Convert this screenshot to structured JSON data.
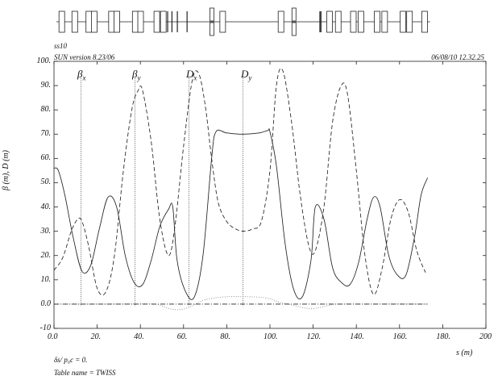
{
  "header": {
    "sequence_name": "ss10",
    "program_version": "SUN version 8.23/06",
    "timestamp": "06/08/10  12.32.25"
  },
  "footer": {
    "delta_label": "δs/ p₀c  =  0.",
    "table_name": "Table name = TWISS"
  },
  "markers": [
    {
      "base": "β",
      "sub": "x",
      "name": "beta-x-label"
    },
    {
      "base": "β",
      "sub": "y",
      "name": "beta-y-label"
    },
    {
      "base": "D",
      "sub": "x",
      "name": "dx-label"
    },
    {
      "base": "D",
      "sub": "y",
      "name": "dy-label"
    }
  ],
  "lattice": {
    "elements": [
      {
        "s": 2.5,
        "type": "quad-focus"
      },
      {
        "s": 8.5,
        "type": "quad-focus"
      },
      {
        "s": 15.0,
        "type": "quad-focus"
      },
      {
        "s": 17.5,
        "type": "quad-focus"
      },
      {
        "s": 25.5,
        "type": "quad-focus"
      },
      {
        "s": 28.0,
        "type": "quad-focus"
      },
      {
        "s": 36.5,
        "type": "quad-focus"
      },
      {
        "s": 39.0,
        "type": "quad-focus"
      },
      {
        "s": 46.5,
        "type": "quad-focus"
      },
      {
        "s": 49.5,
        "type": "quad-focus"
      },
      {
        "s": 51.5,
        "type": "marker"
      },
      {
        "s": 53.5,
        "type": "marker"
      },
      {
        "s": 56.0,
        "type": "marker"
      },
      {
        "s": 60.5,
        "type": "marker"
      },
      {
        "s": 77.0,
        "type": "quad-focus"
      },
      {
        "s": 72.0,
        "type": "quad-defocus"
      },
      {
        "s": 104.0,
        "type": "quad-focus"
      },
      {
        "s": 110.0,
        "type": "quad-defocus"
      },
      {
        "s": 122.0,
        "type": "marker"
      },
      {
        "s": 122.5,
        "type": "marker"
      },
      {
        "s": 126.5,
        "type": "quad-focus"
      },
      {
        "s": 130.5,
        "type": "quad-focus"
      },
      {
        "s": 137.5,
        "type": "quad-focus"
      },
      {
        "s": 141.0,
        "type": "quad-focus"
      },
      {
        "s": 148.5,
        "type": "quad-focus"
      },
      {
        "s": 152.0,
        "type": "quad-focus"
      },
      {
        "s": 160.5,
        "type": "quad-focus"
      },
      {
        "s": 163.5,
        "type": "quad-focus"
      },
      {
        "s": 170.5,
        "type": "quad-focus"
      }
    ]
  },
  "chart_data": {
    "type": "line",
    "xlabel": "s (m)",
    "ylabel": "β  (m),  D  (m)",
    "xlim": [
      0,
      200
    ],
    "ylim": [
      -10,
      100
    ],
    "xticks": [
      0,
      20,
      40,
      60,
      80,
      100,
      120,
      140,
      160,
      180,
      200
    ],
    "xtick_labels": [
      "0.0",
      "20.",
      "40.",
      "60.",
      "80.",
      "100.",
      "120.",
      "140.",
      "160.",
      "180.",
      "200"
    ],
    "yticks": [
      -10,
      0,
      10,
      20,
      30,
      40,
      50,
      60,
      70,
      80,
      90,
      100
    ],
    "ytick_labels": [
      "-10",
      "0.0",
      "10.",
      "20.",
      "30.",
      "40.",
      "50.",
      "60.",
      "70.",
      "80.",
      "90.",
      "100."
    ],
    "marker_positions_s": [
      12.5,
      37.5,
      62.5,
      87.5
    ],
    "series": [
      {
        "key": "beta_x",
        "style": "solid",
        "x": [
          0,
          2,
          5,
          9,
          13,
          17,
          21,
          25,
          29,
          33,
          37,
          41,
          45,
          49,
          53,
          55,
          57,
          61,
          65,
          69,
          73,
          75,
          80,
          87,
          95,
          99,
          100,
          103,
          107,
          111,
          115,
          119,
          121,
          125,
          129,
          133,
          137,
          141,
          145,
          148,
          151,
          155,
          159,
          163,
          167,
          170,
          173
        ],
        "y": [
          56,
          55,
          45,
          27,
          13.5,
          16,
          31,
          44,
          40,
          20,
          9,
          8,
          18,
          32,
          39,
          40,
          18,
          5,
          3,
          20,
          60,
          71,
          70.5,
          70,
          70.5,
          71.5,
          71,
          57,
          25,
          6,
          3,
          18,
          40,
          35,
          15,
          9,
          8,
          17,
          35,
          44,
          40,
          20,
          12,
          12,
          28,
          45,
          52
        ]
      },
      {
        "key": "beta_y",
        "style": "dashed",
        "x": [
          0,
          4,
          8,
          11,
          13,
          16,
          20,
          24,
          28,
          32,
          36,
          39,
          41,
          45,
          49,
          53,
          56,
          60,
          64,
          67,
          70,
          73,
          76,
          80,
          84,
          88,
          92,
          96,
          100,
          103,
          106,
          110,
          114,
          118,
          121,
          125,
          129,
          133,
          136,
          140,
          144,
          148,
          152,
          156,
          160,
          164,
          168,
          172
        ],
        "y": [
          14,
          19,
          30,
          35,
          34,
          24,
          6.5,
          5,
          20,
          54,
          80,
          88,
          88,
          67,
          35,
          20,
          32,
          65,
          92,
          95,
          82,
          60,
          42,
          34,
          31,
          30,
          31,
          34,
          55,
          90,
          96,
          75,
          45,
          24,
          22,
          40,
          75,
          90,
          86,
          55,
          20,
          4,
          15,
          35,
          43,
          38,
          22,
          13
        ]
      },
      {
        "key": "dispersion_x",
        "style": "dotted",
        "x": [
          0,
          30,
          46,
          50,
          54,
          58,
          62,
          66,
          70,
          78,
          86,
          94,
          100,
          104,
          108,
          112,
          116,
          120,
          124,
          128,
          133,
          173
        ],
        "y": [
          0,
          0,
          0,
          -0.8,
          -2,
          -2.3,
          -1.5,
          0.2,
          1.8,
          2.9,
          3.1,
          2.9,
          2.2,
          0.8,
          0.1,
          -0.8,
          -1.6,
          -1.9,
          -1.2,
          -0.4,
          0,
          0
        ]
      },
      {
        "key": "dispersion_y",
        "style": "dash-dot",
        "x": [
          0,
          173
        ],
        "y": [
          0,
          0
        ]
      }
    ]
  }
}
